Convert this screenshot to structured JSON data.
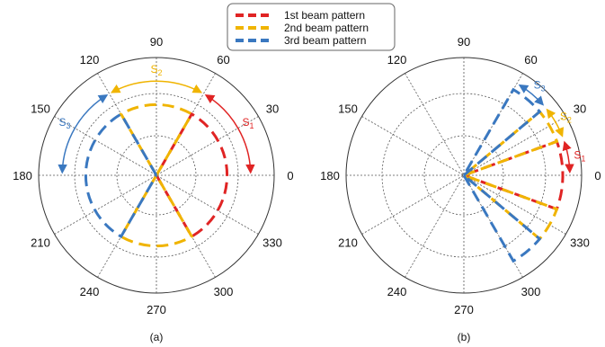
{
  "legend": {
    "entries": [
      {
        "label": "1st beam pattern",
        "color": "#e02424"
      },
      {
        "label": "2nd beam pattern",
        "color": "#f0b400"
      },
      {
        "label": "3rd beam pattern",
        "color": "#3a78c0"
      }
    ]
  },
  "chart_data": [
    {
      "type": "polar",
      "panel_label": "(a)",
      "angle_ticks": [
        "0",
        "30",
        "60",
        "90",
        "120",
        "150",
        "180",
        "210",
        "240",
        "270",
        "300",
        "330"
      ],
      "grid": true,
      "series": [
        {
          "name": "1st beam pattern",
          "color": "#e02424",
          "theta_range_deg": [
            -60,
            60
          ],
          "radius": 0.6
        },
        {
          "name": "2nd beam pattern",
          "color": "#f0b400",
          "theta_range_deg": [
            60,
            120
          ],
          "radius": 0.6
        },
        {
          "name": "2nd beam pattern",
          "color": "#f0b400",
          "theta_range_deg": [
            240,
            300
          ],
          "radius": 0.6
        },
        {
          "name": "3rd beam pattern",
          "color": "#3a78c0",
          "theta_range_deg": [
            120,
            240
          ],
          "radius": 0.6
        }
      ],
      "annotations": [
        {
          "label": "S",
          "subscript": "1",
          "color": "#e02424",
          "theta_range_deg": [
            0,
            60
          ]
        },
        {
          "label": "S",
          "subscript": "2",
          "color": "#f0b400",
          "theta_range_deg": [
            60,
            120
          ]
        },
        {
          "label": "S",
          "subscript": "3",
          "color": "#3a78c0",
          "theta_range_deg": [
            120,
            180
          ]
        }
      ]
    },
    {
      "type": "polar",
      "panel_label": "(b)",
      "angle_ticks": [
        "0",
        "30",
        "60",
        "90",
        "120",
        "150",
        "180",
        "210",
        "240",
        "270",
        "300",
        "330"
      ],
      "grid": true,
      "series": [
        {
          "name": "1st beam pattern",
          "color": "#e02424",
          "theta_range_deg": [
            -20,
            20
          ],
          "radius": 0.84
        },
        {
          "name": "2nd beam pattern",
          "color": "#f0b400",
          "theta_range_deg": [
            -40,
            -20
          ],
          "radius": 0.84
        },
        {
          "name": "2nd beam pattern",
          "color": "#f0b400",
          "theta_range_deg": [
            20,
            40
          ],
          "radius": 0.84
        },
        {
          "name": "3rd beam pattern",
          "color": "#3a78c0",
          "theta_range_deg": [
            -60,
            -40
          ],
          "radius": 0.84
        },
        {
          "name": "3rd beam pattern",
          "color": "#3a78c0",
          "theta_range_deg": [
            40,
            60
          ],
          "radius": 0.84
        }
      ],
      "annotations": [
        {
          "label": "S",
          "subscript": "1",
          "color": "#e02424",
          "theta_range_deg": [
            0,
            20
          ]
        },
        {
          "label": "S",
          "subscript": "2",
          "color": "#f0b400",
          "theta_range_deg": [
            20,
            40
          ]
        },
        {
          "label": "S",
          "subscript": "3",
          "color": "#3a78c0",
          "theta_range_deg": [
            40,
            60
          ]
        }
      ]
    }
  ]
}
